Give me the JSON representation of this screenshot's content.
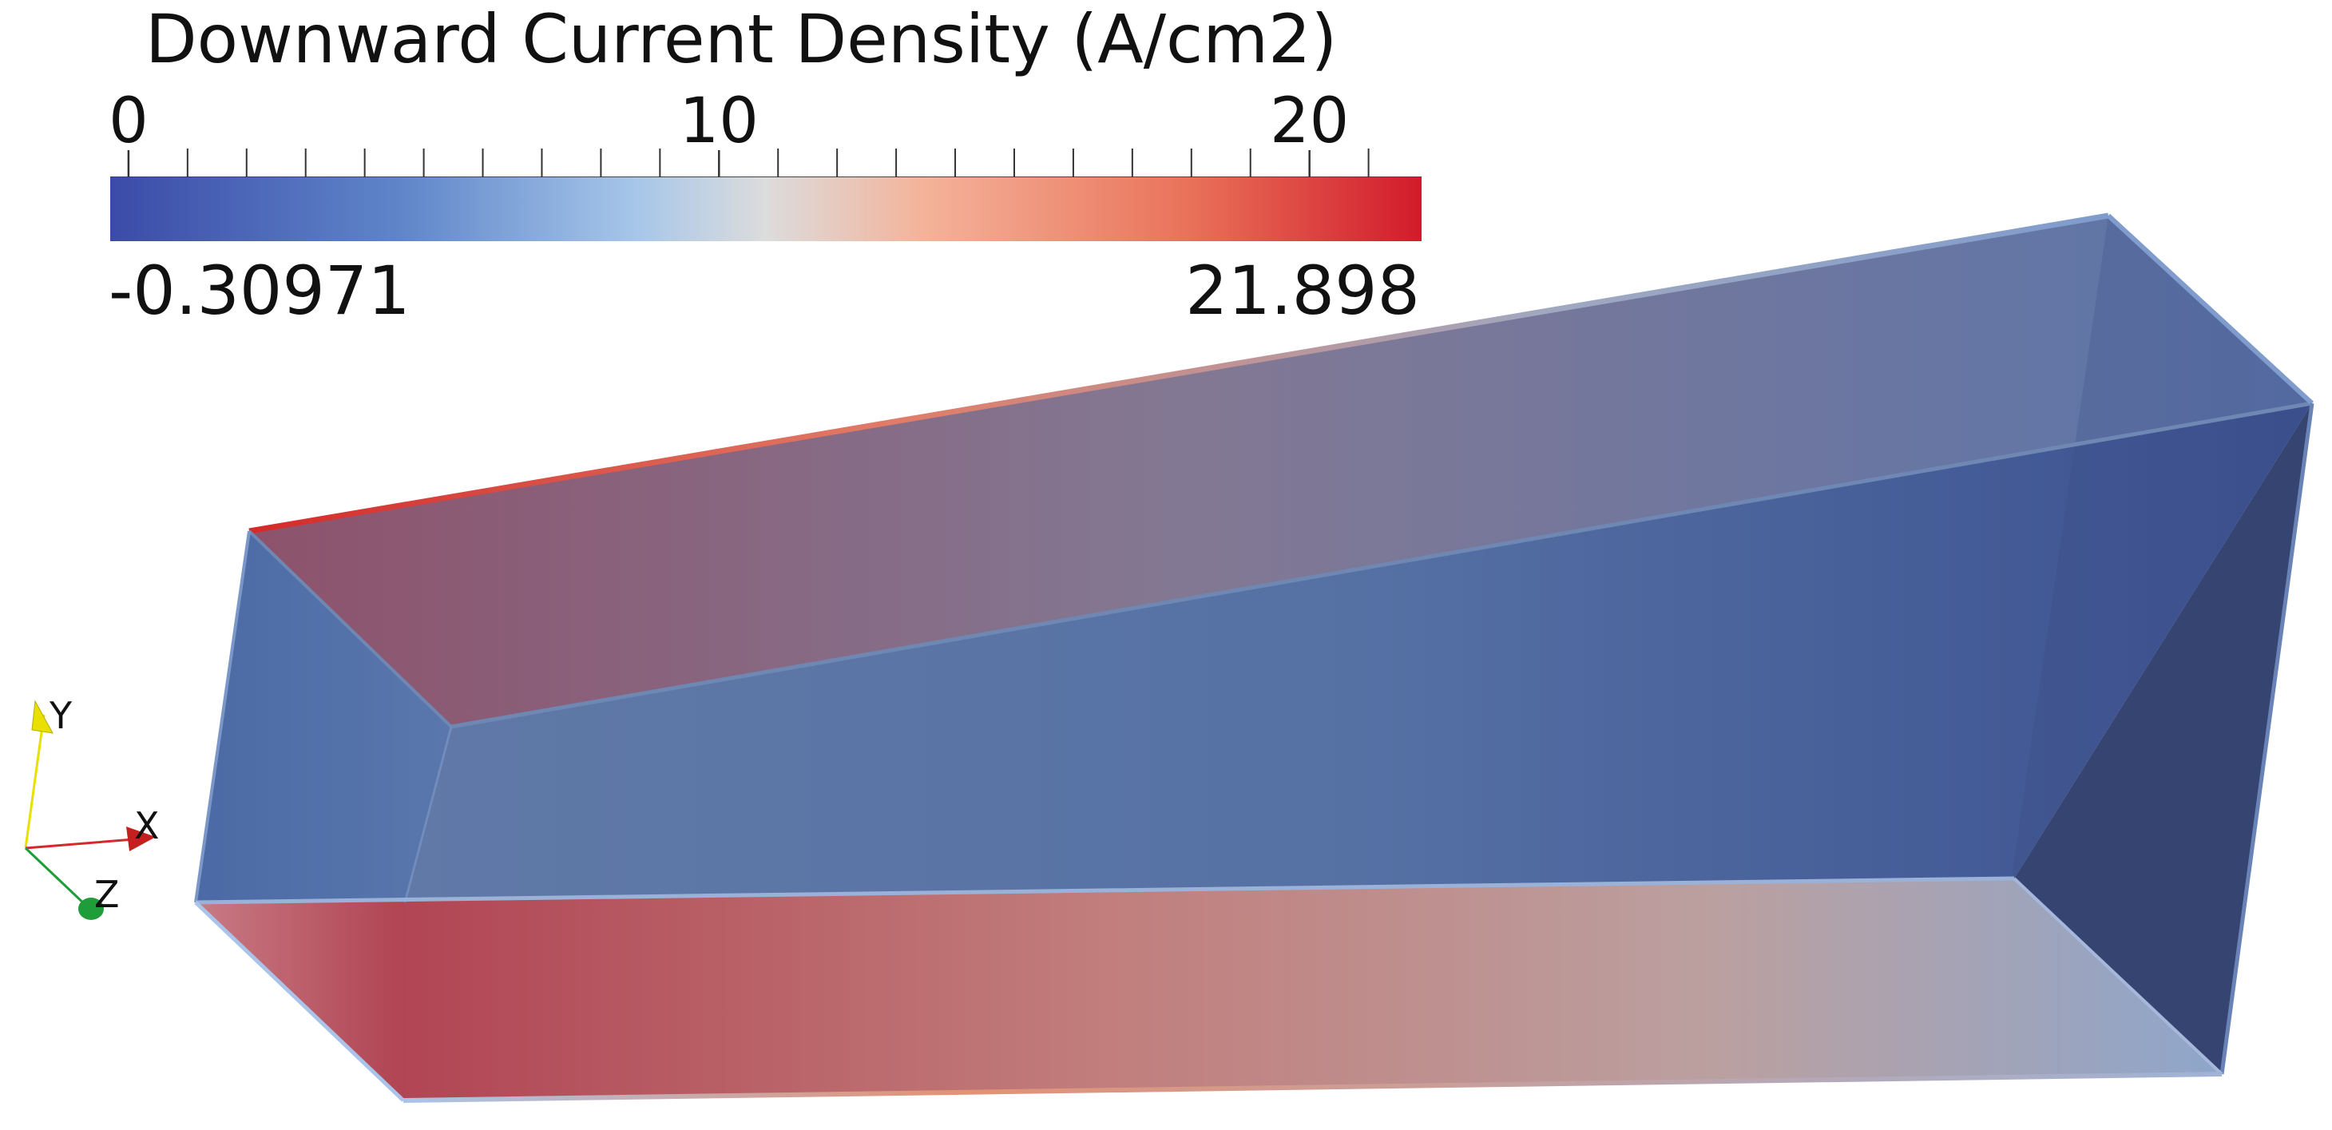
{
  "colorbar": {
    "title": "Downward Current Density (A/cm2)",
    "ticks": [
      {
        "label": "0",
        "value": 0
      },
      {
        "label": "10",
        "value": 10
      },
      {
        "label": "20",
        "value": 20
      }
    ],
    "minor_step": 1,
    "range_min": -0.30971,
    "range_max": 21.898,
    "range_min_label": "-0.30971",
    "range_max_label": "21.898",
    "colormap": [
      "#3b4ba8",
      "#5f85c9",
      "#a6c6e9",
      "#dcdcdc",
      "#f4b39a",
      "#e9735a",
      "#d21b2b"
    ]
  },
  "orientation_axes": {
    "y_label": "Y",
    "x_label": "X",
    "z_label": "Z",
    "y_color": "#e8e000",
    "x_color": "#d42a2a",
    "z_color": "#1f9d3a"
  },
  "box_colors": {
    "top_face_warm": "#8a4d67",
    "top_face_cool": "#5f79a6",
    "bottom_face_warm": "#b14553",
    "bottom_face_cool": "#8fa6c8",
    "back_face": "#5571a4",
    "end_face": "#2e3c6b",
    "edge_highlight": "#d43a3a"
  }
}
